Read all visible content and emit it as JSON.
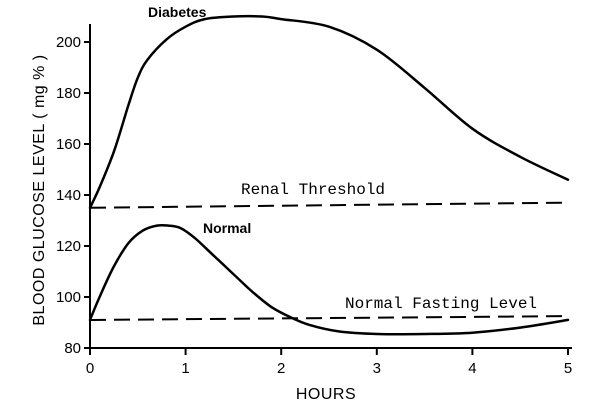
{
  "chart_data": {
    "type": "line",
    "xlabel": "HOURS",
    "ylabel": "BLOOD GLUCOSE LEVEL ( mg % )",
    "xlim": [
      0,
      5
    ],
    "ylim": [
      80,
      200
    ],
    "xticks": [
      "0",
      "1",
      "2",
      "3",
      "4",
      "5"
    ],
    "yticks": [
      "80",
      "100",
      "120",
      "140",
      "160",
      "180",
      "200"
    ],
    "grid": false,
    "series": [
      {
        "name": "Diabetes",
        "x": [
          0,
          0.1,
          0.25,
          0.4,
          0.5,
          0.6,
          0.8,
          1.0,
          1.2,
          1.5,
          1.8,
          2.0,
          2.5,
          3.0,
          3.5,
          4.0,
          4.5,
          5.0
        ],
        "y": [
          135,
          143,
          157,
          175,
          186,
          193,
          201,
          206,
          209,
          210,
          210,
          209,
          206,
          197,
          182,
          166,
          155,
          146
        ]
      },
      {
        "name": "Normal",
        "x": [
          0,
          0.1,
          0.25,
          0.4,
          0.55,
          0.7,
          0.82,
          0.95,
          1.1,
          1.3,
          1.5,
          1.7,
          1.9,
          2.1,
          2.3,
          2.6,
          3.0,
          3.5,
          4.0,
          4.5,
          5.0
        ],
        "y": [
          91,
          100,
          112,
          121,
          126,
          128,
          128,
          127,
          123,
          116,
          109,
          102,
          96,
          92,
          89,
          86.5,
          85.5,
          85.5,
          86,
          88,
          91
        ]
      }
    ],
    "reference_lines": [
      {
        "label": "Renal Threshold",
        "x": [
          0,
          5
        ],
        "y": [
          135,
          137
        ]
      },
      {
        "label": "Normal Fasting Level",
        "x": [
          0,
          5
        ],
        "y": [
          91,
          92.5
        ]
      }
    ]
  }
}
